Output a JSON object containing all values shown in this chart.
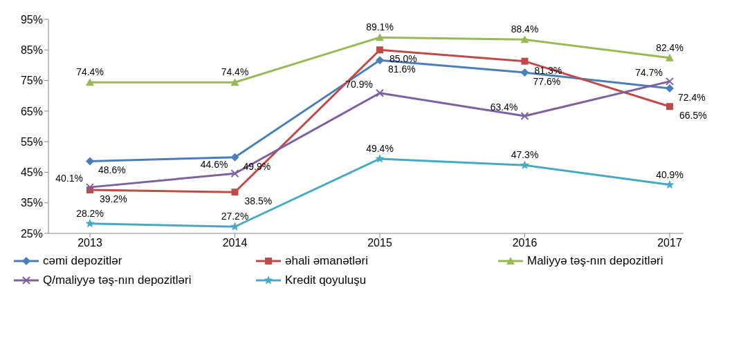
{
  "chart_data": {
    "type": "line",
    "categories": [
      "2013",
      "2014",
      "2015",
      "2016",
      "2017"
    ],
    "series": [
      {
        "name": "cəmi depozitlər",
        "color": "#4a7ebb",
        "marker": "diamond",
        "values": [
          48.6,
          49.9,
          81.6,
          77.6,
          72.4
        ],
        "value_labels": [
          "48.6%",
          "49.9%",
          "81.6%",
          "77.6%",
          "72.4%"
        ]
      },
      {
        "name": "əhali əmanətləri",
        "color": "#be4b48",
        "marker": "square",
        "values": [
          39.2,
          38.5,
          85.0,
          81.3,
          66.5
        ],
        "value_labels": [
          "39.2%",
          "38.5%",
          "85.0%",
          "81.3%",
          "66.5%"
        ]
      },
      {
        "name": "Maliyyə təş-nın depozitləri",
        "color": "#98b954",
        "marker": "triangle",
        "values": [
          74.4,
          74.4,
          89.1,
          88.4,
          82.4
        ],
        "value_labels": [
          "74.4%",
          "74.4%",
          "89.1%",
          "88.4%",
          "82.4%"
        ]
      },
      {
        "name": "Q/maliyyə təş-nın depozitləri",
        "color": "#7d60a0",
        "marker": "cross",
        "values": [
          40.1,
          44.6,
          70.9,
          63.4,
          74.7
        ],
        "value_labels": [
          "40.1%",
          "44.6%",
          "70.9%",
          "63.4%",
          "74.7%"
        ]
      },
      {
        "name": "Kredit qoyuluşu",
        "color": "#46aac5",
        "marker": "star",
        "values": [
          28.2,
          27.2,
          49.4,
          47.3,
          40.9
        ],
        "value_labels": [
          "28.2%",
          "27.2%",
          "49.4%",
          "47.3%",
          "40.9%"
        ]
      }
    ],
    "ylim": [
      25,
      95
    ],
    "yticks": [
      {
        "value": 25,
        "label": "25%"
      },
      {
        "value": 35,
        "label": "35%"
      },
      {
        "value": 45,
        "label": "45%"
      },
      {
        "value": 55,
        "label": "55%"
      },
      {
        "value": 65,
        "label": "65%"
      },
      {
        "value": 75,
        "label": "75%"
      },
      {
        "value": 85,
        "label": "85%"
      },
      {
        "value": 95,
        "label": "95%"
      }
    ],
    "grid": false,
    "legend": "bottom",
    "line_style": "solid"
  }
}
